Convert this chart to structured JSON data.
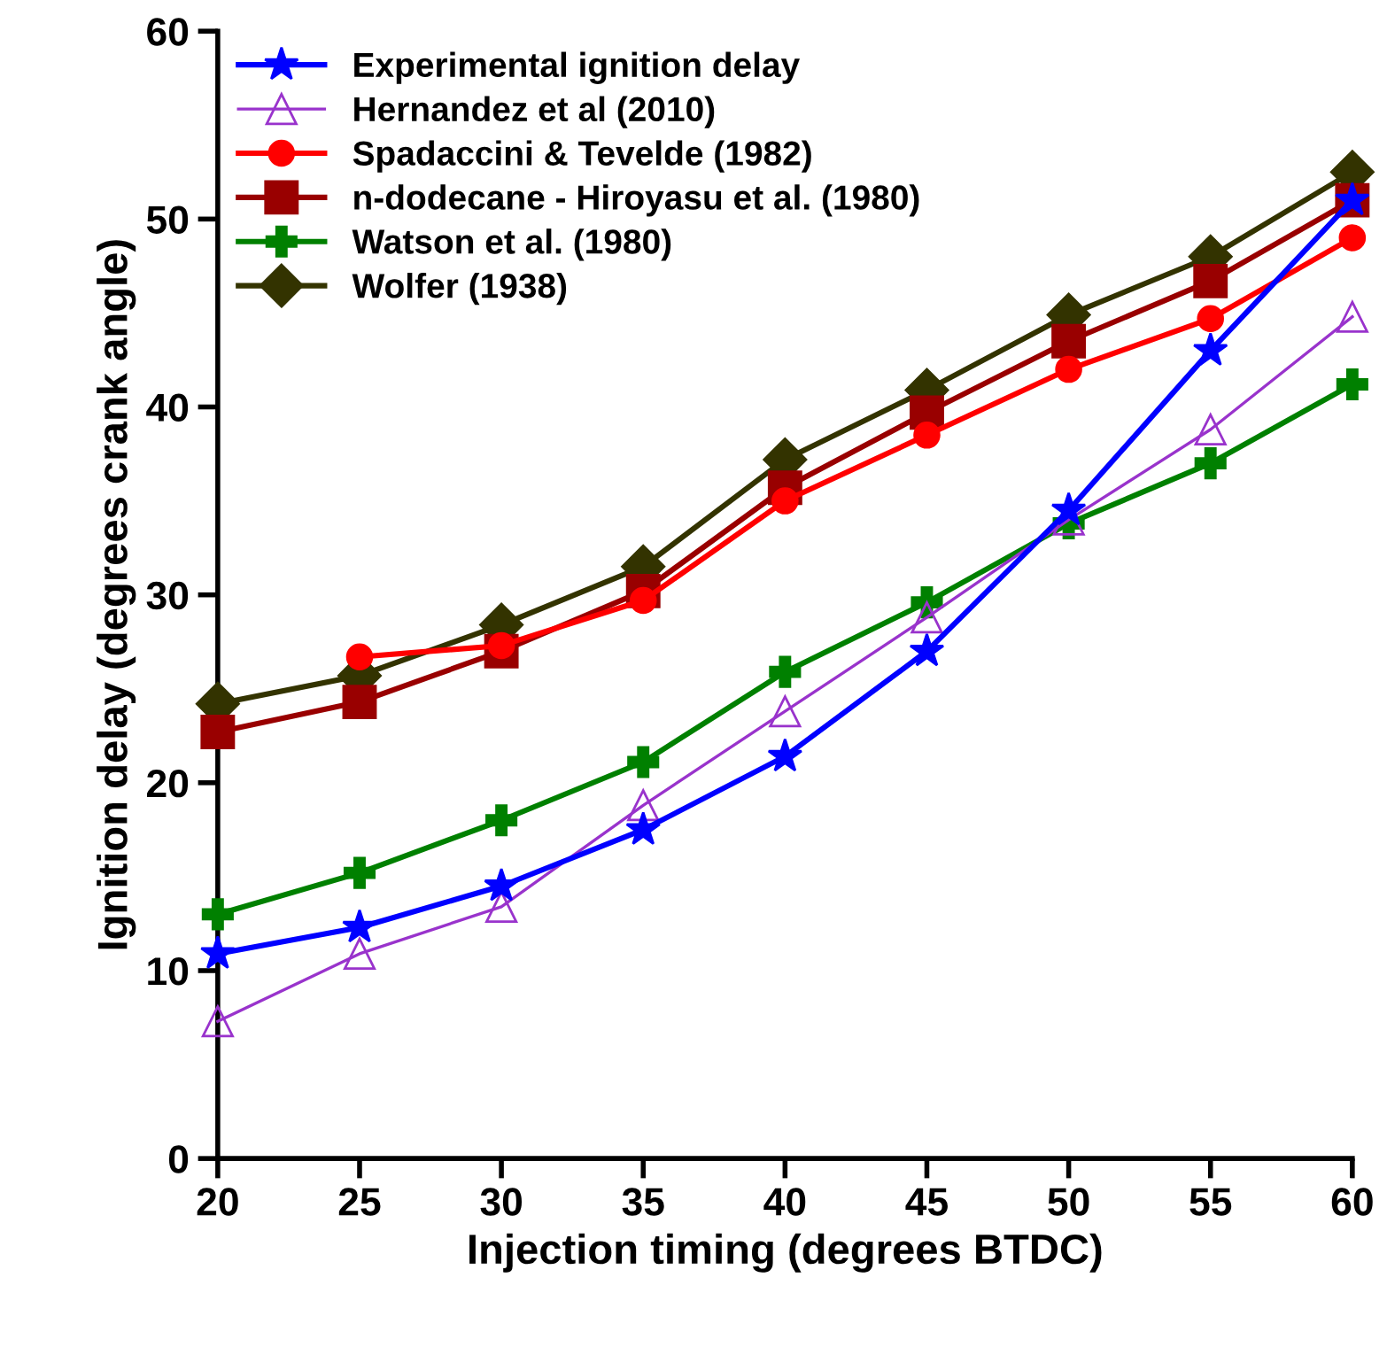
{
  "chart_data": {
    "type": "line",
    "xlabel": "Injection timing (degrees BTDC)",
    "ylabel": "Ignition delay (degrees crank angle)",
    "x": [
      20,
      25,
      30,
      35,
      40,
      45,
      50,
      55,
      60
    ],
    "xlim": [
      20,
      60
    ],
    "xticks": [
      20,
      25,
      30,
      35,
      40,
      45,
      50,
      55,
      60
    ],
    "ylim": [
      0,
      60
    ],
    "yticks": [
      0,
      10,
      20,
      30,
      40,
      50,
      60
    ],
    "grid": false,
    "legend": "top left",
    "series": [
      {
        "name": "Experimental ignition delay",
        "color": "#0000ff",
        "marker": "star",
        "values": [
          10.9,
          12.3,
          14.5,
          17.5,
          21.4,
          27,
          34.5,
          43,
          51
        ]
      },
      {
        "name": "Hernandez et al (2010)",
        "color": "#9933cc",
        "marker": "triangle",
        "values": [
          7.3,
          10.9,
          13.4,
          18.8,
          23.8,
          28.8,
          34,
          38.8,
          44.8
        ]
      },
      {
        "name": "Spadaccini & Tevelde (1982)",
        "color": "#ff0000",
        "marker": "circle",
        "values": [
          null,
          26.7,
          27.3,
          29.7,
          35,
          38.5,
          42,
          44.7,
          49
        ]
      },
      {
        "name": "n-dodecane - Hiroyasu et al. (1980)",
        "color": "#990000",
        "marker": "square",
        "values": [
          22.7,
          24.3,
          27,
          30.2,
          35.7,
          39.7,
          43.5,
          46.7,
          51
        ]
      },
      {
        "name": "Watson et al. (1980)",
        "color": "#008000",
        "marker": "cross",
        "values": [
          13,
          15.2,
          18,
          21.1,
          25.9,
          29.6,
          33.8,
          37,
          41.2
        ]
      },
      {
        "name": "Wolfer (1938)",
        "color": "#333300",
        "marker": "diamond",
        "values": [
          24.2,
          25.7,
          28.4,
          31.5,
          37.2,
          40.9,
          44.9,
          48,
          52.5
        ]
      }
    ]
  }
}
